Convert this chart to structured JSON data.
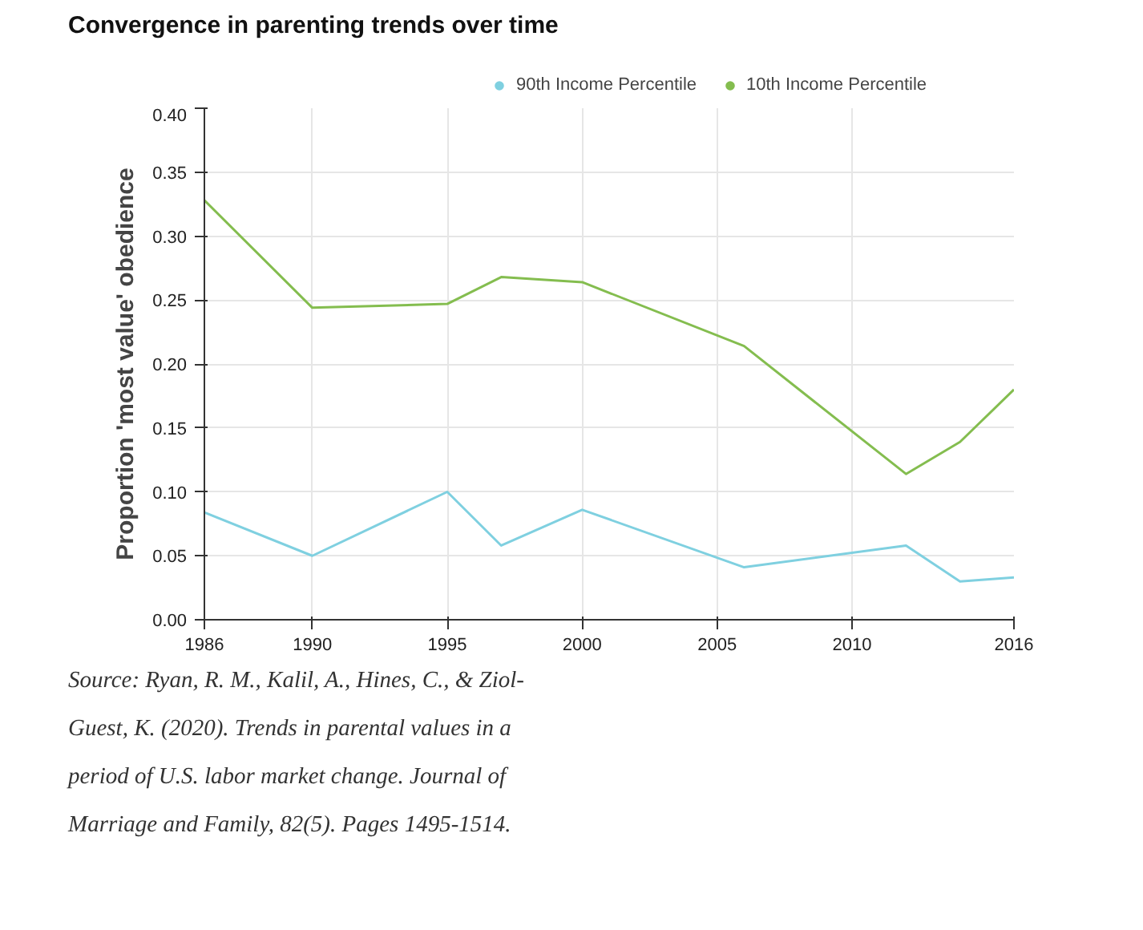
{
  "chart_data": {
    "type": "line",
    "title": "Convergence in parenting trends over time",
    "ylabel": "Proportion 'most value' obedience",
    "xlim": [
      1986,
      2016
    ],
    "xticks": [
      1986,
      1990,
      1995,
      2000,
      2005,
      2010,
      2016
    ],
    "ylim": [
      0,
      0.4
    ],
    "yticks": [
      {
        "value": 0,
        "label": "0.00"
      },
      0.05,
      {
        "value": 0.1,
        "label": "0.10"
      },
      0.15,
      {
        "value": 0.2,
        "label": "0.20"
      },
      0.25,
      {
        "value": 0.3,
        "label": "0.30"
      },
      0.35,
      {
        "value": 0.4,
        "label": "0.40"
      }
    ],
    "grid": true,
    "legend": "top right",
    "marker": "none",
    "line_style": "solid",
    "series": [
      {
        "name": "90th Income Percentile",
        "color": "#7fd0e0",
        "x": [
          1986,
          1990,
          1995,
          1997,
          2000,
          2006,
          2012,
          2014,
          2016
        ],
        "values": [
          0.084,
          0.05,
          0.1,
          0.058,
          0.086,
          0.041,
          0.058,
          0.03,
          0.033
        ]
      },
      {
        "name": "10th Income Percentile",
        "color": "#84bd4f",
        "x": [
          1986,
          1990,
          1995,
          1997,
          2000,
          2006,
          2012,
          2014,
          2016
        ],
        "values": [
          0.328,
          0.244,
          0.247,
          0.268,
          0.264,
          0.214,
          0.114,
          0.139,
          0.18
        ]
      }
    ],
    "annotations": [
      "Source: Ryan, R. M., Kalil, A., Hines, C., & Ziol-Guest, K. (2020). Trends in parental values in a period of U.S. labor market change. Journal of Marriage and Family, 82(5). Pages 1495-1514."
    ]
  }
}
